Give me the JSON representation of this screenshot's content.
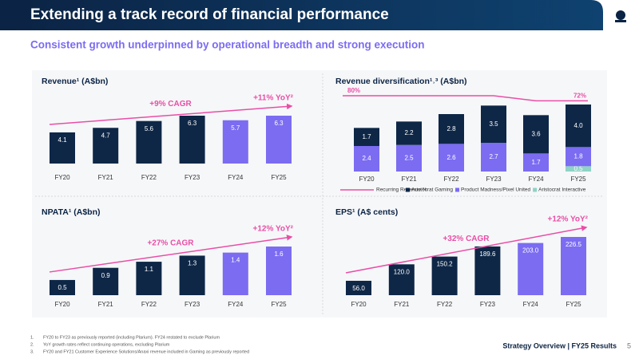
{
  "header": {
    "title": "Extending a track record of financial performance",
    "subtitle": "Consistent growth underpinned by operational breadth and strong execution"
  },
  "chart_data": [
    {
      "type": "bar",
      "title": "Revenue¹ (A$bn)",
      "categories": [
        "FY20",
        "FY21",
        "FY22",
        "FY23",
        "FY24",
        "FY25"
      ],
      "values": [
        4.1,
        4.7,
        5.6,
        6.3,
        5.7,
        6.3
      ],
      "colors": [
        "#0e2747",
        "#0e2747",
        "#0e2747",
        "#0e2747",
        "#7b6cf2",
        "#7b6cf2"
      ],
      "annotations": [
        "+9% CAGR",
        "+11% YoY²"
      ]
    },
    {
      "type": "stacked_bar",
      "title": "Revenue diversification¹˒³ (A$bn)",
      "categories": [
        "FY20",
        "FY21",
        "FY22",
        "FY23",
        "FY24",
        "FY25"
      ],
      "series": [
        {
          "name": "Aristocrat Gaming",
          "color": "#0e2747",
          "values": [
            1.7,
            2.2,
            2.8,
            3.5,
            3.6,
            4.0
          ],
          "value_labels": [
            null,
            null,
            null,
            null,
            null,
            "4.0"
          ]
        },
        {
          "name": "Product Madness/Pixel United",
          "color": "#7b6cf2",
          "values": [
            2.4,
            2.5,
            2.6,
            2.7,
            1.7,
            1.8
          ]
        },
        {
          "name": "Aristocrat Interactive",
          "color": "#8fd3c5",
          "values": [
            null,
            null,
            null,
            null,
            null,
            0.5
          ]
        }
      ],
      "line": {
        "name": "Recurring Revenue %",
        "color": "#e94ea6",
        "values": [
          80,
          80,
          80,
          80,
          72,
          72
        ],
        "value_labels": [
          "80%",
          null,
          null,
          null,
          null,
          "72%"
        ]
      }
    },
    {
      "type": "bar",
      "title": "NPATA¹ (A$bn)",
      "categories": [
        "FY20",
        "FY21",
        "FY22",
        "FY23",
        "FY24",
        "FY25"
      ],
      "values": [
        0.5,
        0.9,
        1.1,
        1.3,
        1.4,
        1.6
      ],
      "colors": [
        "#0e2747",
        "#0e2747",
        "#0e2747",
        "#0e2747",
        "#7b6cf2",
        "#7b6cf2"
      ],
      "annotations": [
        "+27% CAGR",
        "+12% YoY²"
      ]
    },
    {
      "type": "bar",
      "title": "EPS¹ (A$ cents)",
      "categories": [
        "FY20",
        "FY21",
        "FY22",
        "FY23",
        "FY24",
        "FY25"
      ],
      "values": [
        56.0,
        120.0,
        150.2,
        189.6,
        203.0,
        226.5
      ],
      "value_labels": [
        "56.0",
        "120.0",
        null,
        null,
        "203.0",
        null
      ],
      "colors": [
        "#0e2747",
        "#0e2747",
        "#0e2747",
        "#0e2747",
        "#7b6cf2",
        "#7b6cf2"
      ],
      "annotations": [
        "+32% CAGR",
        "+12% YoY²"
      ]
    }
  ],
  "footnotes": [
    "FY20 to FY23 as previously reported (including Plarium). FY24 restated to exclude Plarium",
    "YoY growth rates reflect continuing operations, excluding Plarium",
    "FY20 and FY21 Customer Experience Solutions/Anaxi revenue included in Gaming as previously reported"
  ],
  "footer": {
    "section": "Strategy Overview | FY25 Results",
    "page": 5
  }
}
